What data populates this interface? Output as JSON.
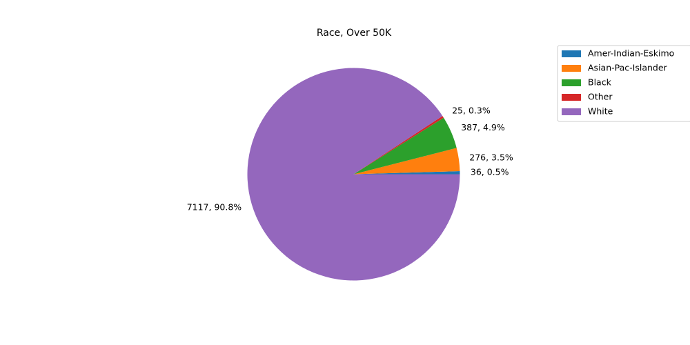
{
  "chart_data": {
    "type": "pie",
    "title": "Race, Over 50K",
    "categories": [
      "Amer-Indian-Eskimo",
      "Asian-Pac-Islander",
      "Black",
      "Other",
      "White"
    ],
    "values": [
      36,
      276,
      387,
      25,
      7117
    ],
    "labels": [
      "36, 0.5%",
      "276, 3.5%",
      "387, 4.9%",
      "25, 0.3%",
      "7117, 90.8%"
    ],
    "colors": [
      "#1f77b4",
      "#ff7f0e",
      "#2ca02c",
      "#d62728",
      "#9467bd"
    ],
    "start_angle_deg": 0,
    "direction": "counterclockwise",
    "legend": {
      "placement": "upper-right-outside",
      "entries": [
        " Amer-Indian-Eskimo",
        " Asian-Pac-Islander",
        " Black",
        " Other",
        " White"
      ]
    }
  }
}
